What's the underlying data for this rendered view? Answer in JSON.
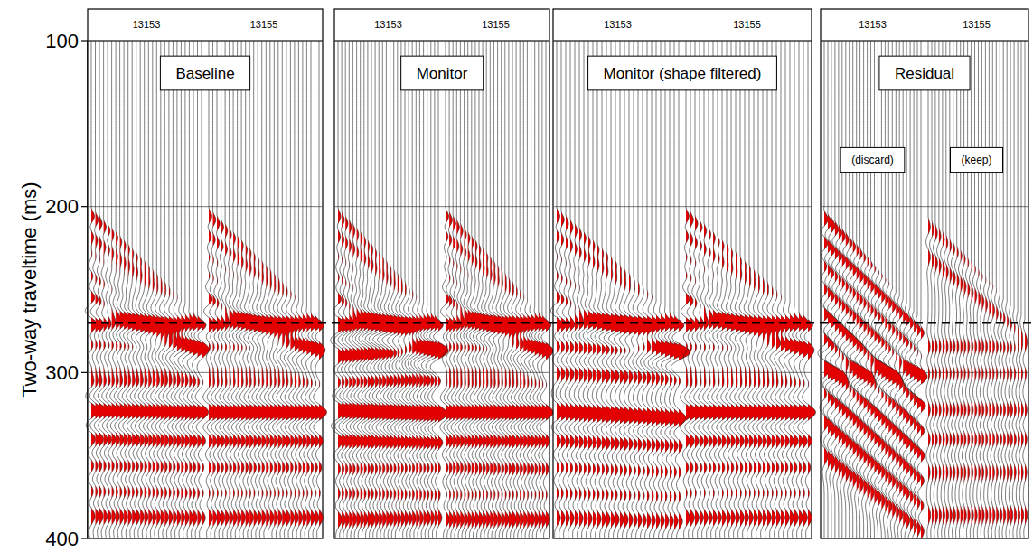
{
  "chart_data": {
    "type": "seismic_wiggle",
    "ylabel": "Two-way traveltime (ms)",
    "ylim": [
      100,
      400
    ],
    "yticks": [
      100,
      200,
      300,
      400
    ],
    "grid": true,
    "color": "#e30000",
    "hline": 270,
    "panels": [
      {
        "title": "Baseline",
        "gathers": [
          {
            "label": "13153",
            "mute": [
              200,
              268
            ],
            "events": [
              {
                "t0": 206,
                "t1": 262,
                "amp": 0.9
              },
              {
                "t0": 218,
                "t1": 270,
                "amp": 1.0
              },
              {
                "t0": 229,
                "t1": 278,
                "amp": 0.8
              },
              {
                "t0": 242,
                "t1": 285,
                "amp": 0.8
              },
              {
                "t0": 255,
                "t1": 290,
                "amp": 0.9
              },
              {
                "t0": 271,
                "t1": 271,
                "amp": 1.2
              },
              {
                "t0": 283,
                "t1": 284,
                "amp": 0.9
              },
              {
                "t0": 296,
                "t1": 297,
                "amp": 0.6
              },
              {
                "t0": 306,
                "t1": 306,
                "amp": 0.7
              },
              {
                "t0": 323,
                "t1": 324,
                "amp": 1.0
              },
              {
                "t0": 340,
                "t1": 341,
                "amp": 0.7
              },
              {
                "t0": 356,
                "t1": 357,
                "amp": 0.5
              },
              {
                "t0": 372,
                "t1": 373,
                "amp": 0.5
              },
              {
                "t0": 386,
                "t1": 387,
                "amp": 0.6
              }
            ]
          },
          {
            "label": "13155",
            "mute": [
              200,
              268
            ],
            "events": [
              {
                "t0": 206,
                "t1": 262,
                "amp": 0.9
              },
              {
                "t0": 218,
                "t1": 270,
                "amp": 1.0
              },
              {
                "t0": 230,
                "t1": 278,
                "amp": 0.8
              },
              {
                "t0": 242,
                "t1": 285,
                "amp": 0.7
              },
              {
                "t0": 256,
                "t1": 290,
                "amp": 0.9
              },
              {
                "t0": 271,
                "t1": 271,
                "amp": 1.2
              },
              {
                "t0": 284,
                "t1": 284,
                "amp": 0.8
              },
              {
                "t0": 297,
                "t1": 297,
                "amp": 0.6
              },
              {
                "t0": 307,
                "t1": 307,
                "amp": 0.6
              },
              {
                "t0": 324,
                "t1": 324,
                "amp": 1.1
              },
              {
                "t0": 341,
                "t1": 341,
                "amp": 0.7
              },
              {
                "t0": 357,
                "t1": 357,
                "amp": 0.5
              },
              {
                "t0": 373,
                "t1": 373,
                "amp": 0.4
              },
              {
                "t0": 387,
                "t1": 387,
                "amp": 0.6
              }
            ]
          }
        ]
      },
      {
        "title": "Monitor",
        "gathers": [
          {
            "label": "13153",
            "mute": [
              200,
              268
            ],
            "events": [
              {
                "t0": 206,
                "t1": 262,
                "amp": 0.8
              },
              {
                "t0": 218,
                "t1": 270,
                "amp": 0.9
              },
              {
                "t0": 230,
                "t1": 278,
                "amp": 0.7
              },
              {
                "t0": 243,
                "t1": 285,
                "amp": 0.7
              },
              {
                "t0": 256,
                "t1": 290,
                "amp": 0.9
              },
              {
                "t0": 271,
                "t1": 271,
                "amp": 1.2
              },
              {
                "t0": 290,
                "t1": 285,
                "amp": 0.9
              },
              {
                "t0": 306,
                "t1": 304,
                "amp": 0.6
              },
              {
                "t0": 323,
                "t1": 325,
                "amp": 1.2
              },
              {
                "t0": 341,
                "t1": 342,
                "amp": 0.8
              },
              {
                "t0": 358,
                "t1": 357,
                "amp": 0.5
              },
              {
                "t0": 373,
                "t1": 374,
                "amp": 0.5
              },
              {
                "t0": 388,
                "t1": 387,
                "amp": 0.6
              }
            ]
          },
          {
            "label": "13155",
            "mute": [
              200,
              268
            ],
            "events": [
              {
                "t0": 206,
                "t1": 262,
                "amp": 0.9
              },
              {
                "t0": 218,
                "t1": 270,
                "amp": 1.0
              },
              {
                "t0": 230,
                "t1": 278,
                "amp": 0.8
              },
              {
                "t0": 242,
                "t1": 285,
                "amp": 0.7
              },
              {
                "t0": 256,
                "t1": 290,
                "amp": 0.9
              },
              {
                "t0": 271,
                "t1": 271,
                "amp": 1.2
              },
              {
                "t0": 284,
                "t1": 285,
                "amp": 0.8
              },
              {
                "t0": 298,
                "t1": 298,
                "amp": 0.6
              },
              {
                "t0": 308,
                "t1": 308,
                "amp": 0.6
              },
              {
                "t0": 324,
                "t1": 324,
                "amp": 1.1
              },
              {
                "t0": 341,
                "t1": 341,
                "amp": 0.7
              },
              {
                "t0": 357,
                "t1": 358,
                "amp": 0.5
              },
              {
                "t0": 374,
                "t1": 374,
                "amp": 0.4
              },
              {
                "t0": 388,
                "t1": 388,
                "amp": 0.6
              }
            ]
          }
        ]
      },
      {
        "title": "Monitor (shape filtered)",
        "gathers": [
          {
            "label": "13153",
            "mute": [
              200,
              268
            ],
            "events": [
              {
                "t0": 206,
                "t1": 262,
                "amp": 0.9
              },
              {
                "t0": 218,
                "t1": 270,
                "amp": 1.0
              },
              {
                "t0": 230,
                "t1": 278,
                "amp": 0.8
              },
              {
                "t0": 242,
                "t1": 285,
                "amp": 0.8
              },
              {
                "t0": 255,
                "t1": 290,
                "amp": 0.9
              },
              {
                "t0": 271,
                "t1": 271,
                "amp": 1.2
              },
              {
                "t0": 284,
                "t1": 287,
                "amp": 0.9
              },
              {
                "t0": 300,
                "t1": 303,
                "amp": 0.6
              },
              {
                "t0": 324,
                "t1": 328,
                "amp": 1.0
              },
              {
                "t0": 341,
                "t1": 344,
                "amp": 0.7
              },
              {
                "t0": 357,
                "t1": 360,
                "amp": 0.5
              },
              {
                "t0": 373,
                "t1": 375,
                "amp": 0.5
              },
              {
                "t0": 387,
                "t1": 389,
                "amp": 0.6
              }
            ]
          },
          {
            "label": "13155",
            "mute": [
              200,
              268
            ],
            "events": [
              {
                "t0": 206,
                "t1": 262,
                "amp": 0.9
              },
              {
                "t0": 218,
                "t1": 270,
                "amp": 1.0
              },
              {
                "t0": 230,
                "t1": 278,
                "amp": 0.8
              },
              {
                "t0": 242,
                "t1": 285,
                "amp": 0.7
              },
              {
                "t0": 256,
                "t1": 290,
                "amp": 0.9
              },
              {
                "t0": 271,
                "t1": 271,
                "amp": 1.2
              },
              {
                "t0": 284,
                "t1": 284,
                "amp": 0.8
              },
              {
                "t0": 297,
                "t1": 297,
                "amp": 0.6
              },
              {
                "t0": 307,
                "t1": 307,
                "amp": 0.6
              },
              {
                "t0": 324,
                "t1": 324,
                "amp": 1.1
              },
              {
                "t0": 341,
                "t1": 341,
                "amp": 0.7
              },
              {
                "t0": 357,
                "t1": 357,
                "amp": 0.5
              },
              {
                "t0": 373,
                "t1": 373,
                "amp": 0.4
              },
              {
                "t0": 387,
                "t1": 387,
                "amp": 0.6
              }
            ]
          }
        ]
      },
      {
        "title": "Residual",
        "gathers": [
          {
            "label": "13153",
            "tag": "(discard)",
            "mute": [
              200,
              268
            ],
            "events": [
              {
                "t0": 208,
                "t1": 262,
                "amp": 0.8
              },
              {
                "t0": 222,
                "t1": 276,
                "amp": 0.9
              },
              {
                "t0": 236,
                "t1": 290,
                "amp": 0.8
              },
              {
                "t0": 250,
                "t1": 304,
                "amp": 0.8
              },
              {
                "t0": 265,
                "t1": 320,
                "amp": 0.9
              },
              {
                "t0": 280,
                "t1": 335,
                "amp": 0.8
              },
              {
                "t0": 296,
                "t1": 350,
                "amp": 0.8
              },
              {
                "t0": 300,
                "t1": 300,
                "amp": 0.6
              },
              {
                "t0": 312,
                "t1": 365,
                "amp": 0.7
              },
              {
                "t0": 330,
                "t1": 380,
                "amp": 0.6
              },
              {
                "t0": 350,
                "t1": 395,
                "amp": 0.5
              }
            ]
          },
          {
            "label": "13155",
            "tag": "(keep)",
            "mute": [
              205,
              268
            ],
            "events": [
              {
                "t0": 212,
                "t1": 262,
                "amp": 0.35
              },
              {
                "t0": 230,
                "t1": 278,
                "amp": 0.3
              },
              {
                "t0": 285,
                "t1": 285,
                "amp": 0.3
              },
              {
                "t0": 300,
                "t1": 300,
                "amp": 0.25
              },
              {
                "t0": 323,
                "t1": 323,
                "amp": 0.3
              },
              {
                "t0": 340,
                "t1": 340,
                "amp": 0.3
              },
              {
                "t0": 360,
                "t1": 360,
                "amp": 0.25
              },
              {
                "t0": 386,
                "t1": 386,
                "amp": 0.3
              }
            ]
          }
        ]
      }
    ]
  }
}
